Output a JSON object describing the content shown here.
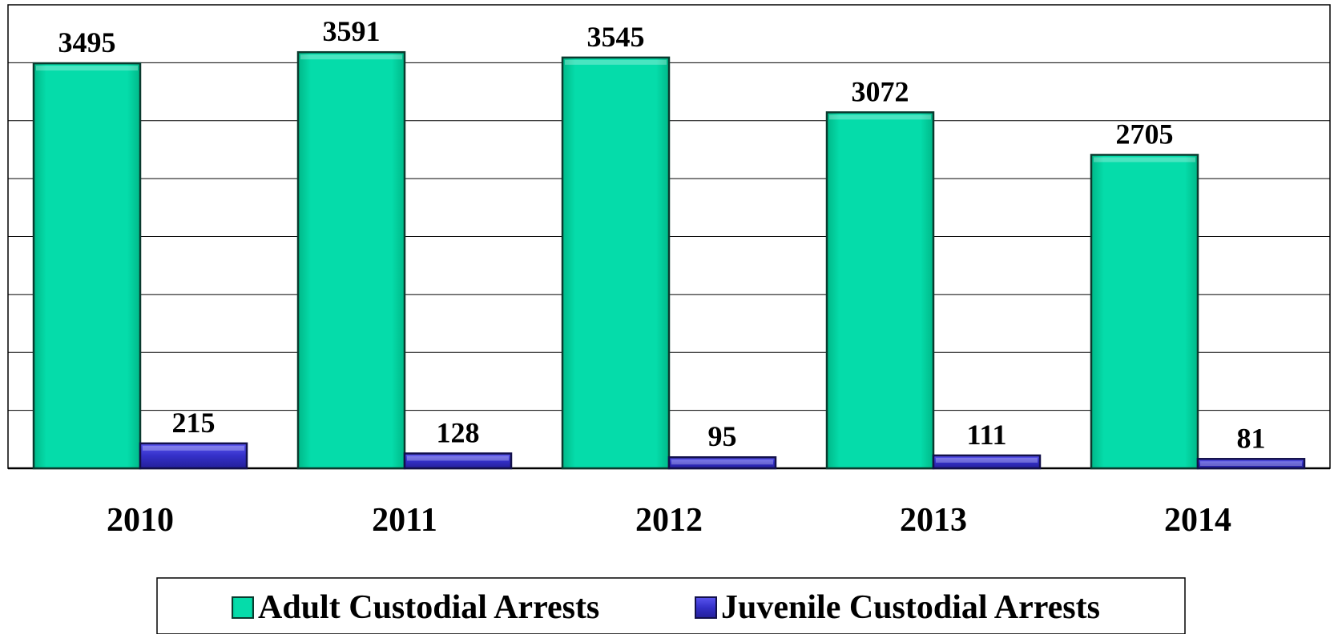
{
  "chart_data": {
    "type": "bar",
    "title": "",
    "xlabel": "",
    "ylabel": "",
    "categories": [
      "2010",
      "2011",
      "2012",
      "2013",
      "2014"
    ],
    "series": [
      {
        "name": "Adult Custodial Arrests",
        "values": [
          3495,
          3591,
          3545,
          3072,
          2705
        ],
        "color": "#00d4a0"
      },
      {
        "name": "Juvenile Custodial Arrests",
        "values": [
          215,
          128,
          95,
          111,
          81
        ],
        "color": "#3b34cc"
      }
    ],
    "ylim": [
      0,
      4000
    ],
    "grid": true,
    "data_labels": true,
    "legend_position": "bottom"
  }
}
